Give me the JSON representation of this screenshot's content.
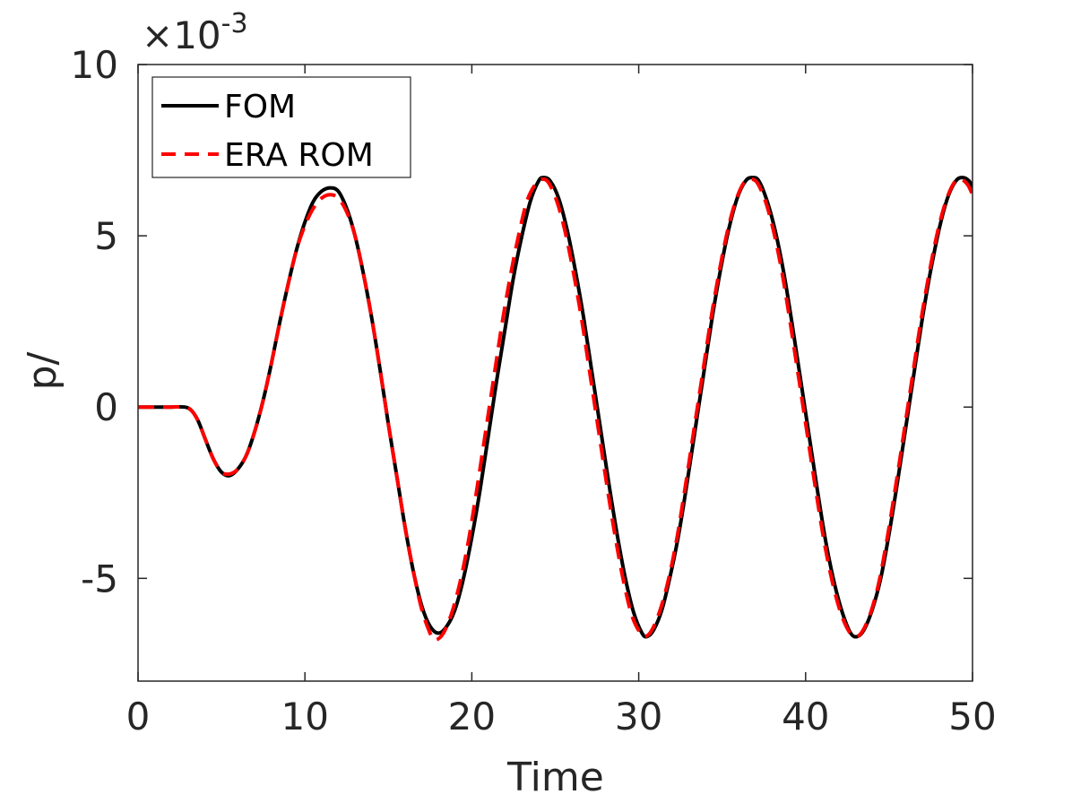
{
  "chart_data": {
    "type": "line",
    "title": "",
    "xlabel": "Time",
    "ylabel": "p/",
    "y_exponent_label": "×10",
    "y_exponent_power": "-3",
    "xlim": [
      0,
      50
    ],
    "ylim": [
      -8.0,
      10.0
    ],
    "x_ticks": [
      0,
      10,
      20,
      30,
      40,
      50
    ],
    "x_tick_labels": [
      "0",
      "10",
      "20",
      "30",
      "40",
      "50"
    ],
    "y_ticks": [
      -5,
      0,
      5,
      10
    ],
    "y_tick_labels": [
      "-5",
      "0",
      "5",
      "10"
    ],
    "grid": false,
    "legend_position": "top-left",
    "series": [
      {
        "name": "FOM",
        "color": "#000000",
        "style": "solid",
        "points": [
          [
            0,
            0
          ],
          [
            1,
            0
          ],
          [
            2,
            0
          ],
          [
            2.8,
            0
          ],
          [
            3.2,
            -0.1
          ],
          [
            3.6,
            -0.4
          ],
          [
            4,
            -0.9
          ],
          [
            4.5,
            -1.5
          ],
          [
            5,
            -1.9
          ],
          [
            5.5,
            -2.0
          ],
          [
            6,
            -1.8
          ],
          [
            6.5,
            -1.4
          ],
          [
            7,
            -0.7
          ],
          [
            7.5,
            0.2
          ],
          [
            8,
            1.3
          ],
          [
            8.5,
            2.5
          ],
          [
            9,
            3.6
          ],
          [
            9.5,
            4.6
          ],
          [
            10,
            5.4
          ],
          [
            10.5,
            6.0
          ],
          [
            11,
            6.3
          ],
          [
            11.5,
            6.4
          ],
          [
            12,
            6.3
          ],
          [
            12.5,
            5.8
          ],
          [
            13,
            5.0
          ],
          [
            13.5,
            3.9
          ],
          [
            14,
            2.6
          ],
          [
            14.5,
            1.1
          ],
          [
            15,
            -0.5
          ],
          [
            15.5,
            -2.0
          ],
          [
            16,
            -3.5
          ],
          [
            16.5,
            -4.8
          ],
          [
            17,
            -5.8
          ],
          [
            17.5,
            -6.4
          ],
          [
            18,
            -6.6
          ],
          [
            18.5,
            -6.4
          ],
          [
            19,
            -5.9
          ],
          [
            19.5,
            -5.0
          ],
          [
            20,
            -3.8
          ],
          [
            20.5,
            -2.4
          ],
          [
            21,
            -0.8
          ],
          [
            21.5,
            0.8
          ],
          [
            22,
            2.3
          ],
          [
            22.5,
            3.8
          ],
          [
            23,
            5.0
          ],
          [
            23.5,
            6.0
          ],
          [
            24,
            6.6
          ],
          [
            24.3,
            6.7
          ],
          [
            24.7,
            6.6
          ],
          [
            25.2,
            6.1
          ],
          [
            25.7,
            5.2
          ],
          [
            26.2,
            4.0
          ],
          [
            26.7,
            2.6
          ],
          [
            27.2,
            1.0
          ],
          [
            27.7,
            -0.6
          ],
          [
            28.2,
            -2.2
          ],
          [
            28.7,
            -3.7
          ],
          [
            29.2,
            -5.0
          ],
          [
            29.7,
            -6.0
          ],
          [
            30.2,
            -6.6
          ],
          [
            30.5,
            -6.7
          ],
          [
            30.9,
            -6.5
          ],
          [
            31.4,
            -5.9
          ],
          [
            31.9,
            -4.9
          ],
          [
            32.4,
            -3.7
          ],
          [
            32.9,
            -2.2
          ],
          [
            33.4,
            -0.6
          ],
          [
            33.9,
            1.0
          ],
          [
            34.4,
            2.6
          ],
          [
            34.9,
            4.0
          ],
          [
            35.4,
            5.2
          ],
          [
            35.9,
            6.1
          ],
          [
            36.4,
            6.6
          ],
          [
            36.8,
            6.7
          ],
          [
            37.2,
            6.6
          ],
          [
            37.7,
            6.0
          ],
          [
            38.2,
            5.1
          ],
          [
            38.7,
            3.9
          ],
          [
            39.2,
            2.4
          ],
          [
            39.7,
            0.8
          ],
          [
            40.2,
            -0.8
          ],
          [
            40.7,
            -2.4
          ],
          [
            41.2,
            -3.9
          ],
          [
            41.7,
            -5.1
          ],
          [
            42.2,
            -6.0
          ],
          [
            42.7,
            -6.6
          ],
          [
            43.1,
            -6.7
          ],
          [
            43.5,
            -6.5
          ],
          [
            44,
            -5.9
          ],
          [
            44.5,
            -5.0
          ],
          [
            45,
            -3.7
          ],
          [
            45.5,
            -2.2
          ],
          [
            46,
            -0.6
          ],
          [
            46.5,
            1.0
          ],
          [
            47,
            2.6
          ],
          [
            47.5,
            4.0
          ],
          [
            48,
            5.2
          ],
          [
            48.5,
            6.1
          ],
          [
            49,
            6.6
          ],
          [
            49.4,
            6.7
          ],
          [
            49.8,
            6.6
          ],
          [
            50,
            6.4
          ]
        ]
      },
      {
        "name": "ERA ROM",
        "color": "#ff0000",
        "style": "dashed",
        "points": [
          [
            0,
            0
          ],
          [
            1,
            0
          ],
          [
            2,
            0
          ],
          [
            2.8,
            0
          ],
          [
            3.2,
            -0.1
          ],
          [
            3.6,
            -0.4
          ],
          [
            4,
            -0.9
          ],
          [
            4.5,
            -1.5
          ],
          [
            5,
            -1.9
          ],
          [
            5.5,
            -1.95
          ],
          [
            6,
            -1.8
          ],
          [
            6.5,
            -1.4
          ],
          [
            7,
            -0.7
          ],
          [
            7.5,
            0.2
          ],
          [
            8,
            1.3
          ],
          [
            8.5,
            2.5
          ],
          [
            9,
            3.6
          ],
          [
            9.5,
            4.6
          ],
          [
            10,
            5.3
          ],
          [
            10.5,
            5.8
          ],
          [
            11,
            6.1
          ],
          [
            11.5,
            6.2
          ],
          [
            12,
            6.1
          ],
          [
            12.5,
            5.7
          ],
          [
            13,
            5.0
          ],
          [
            13.5,
            3.9
          ],
          [
            14,
            2.6
          ],
          [
            14.5,
            1.1
          ],
          [
            15,
            -0.5
          ],
          [
            15.5,
            -2.0
          ],
          [
            16,
            -3.5
          ],
          [
            16.5,
            -4.8
          ],
          [
            17,
            -5.9
          ],
          [
            17.5,
            -6.6
          ],
          [
            17.8,
            -6.8
          ],
          [
            18.3,
            -6.6
          ],
          [
            18.8,
            -6.0
          ],
          [
            19.3,
            -5.1
          ],
          [
            19.8,
            -3.9
          ],
          [
            20.3,
            -2.4
          ],
          [
            20.8,
            -0.8
          ],
          [
            21.3,
            0.8
          ],
          [
            21.8,
            2.4
          ],
          [
            22.3,
            3.8
          ],
          [
            22.8,
            5.0
          ],
          [
            23.3,
            6.0
          ],
          [
            23.8,
            6.5
          ],
          [
            24.2,
            6.65
          ],
          [
            24.6,
            6.55
          ],
          [
            25.1,
            6.0
          ],
          [
            25.6,
            5.1
          ],
          [
            26.1,
            3.9
          ],
          [
            26.6,
            2.5
          ],
          [
            27.1,
            0.9
          ],
          [
            27.6,
            -0.7
          ],
          [
            28.1,
            -2.3
          ],
          [
            28.6,
            -3.8
          ],
          [
            29.1,
            -5.1
          ],
          [
            29.6,
            -6.1
          ],
          [
            30.1,
            -6.6
          ],
          [
            30.4,
            -6.7
          ],
          [
            30.8,
            -6.5
          ],
          [
            31.3,
            -5.9
          ],
          [
            31.8,
            -5.0
          ],
          [
            32.3,
            -3.8
          ],
          [
            32.8,
            -2.3
          ],
          [
            33.3,
            -0.7
          ],
          [
            33.8,
            0.9
          ],
          [
            34.3,
            2.5
          ],
          [
            34.8,
            3.9
          ],
          [
            35.3,
            5.1
          ],
          [
            35.8,
            6.0
          ],
          [
            36.3,
            6.55
          ],
          [
            36.7,
            6.65
          ],
          [
            37.1,
            6.55
          ],
          [
            37.6,
            6.0
          ],
          [
            38.1,
            5.1
          ],
          [
            38.6,
            3.9
          ],
          [
            39.1,
            2.4
          ],
          [
            39.6,
            0.8
          ],
          [
            40.1,
            -0.8
          ],
          [
            40.6,
            -2.4
          ],
          [
            41.1,
            -3.9
          ],
          [
            41.6,
            -5.1
          ],
          [
            42.1,
            -6.0
          ],
          [
            42.6,
            -6.55
          ],
          [
            43,
            -6.7
          ],
          [
            43.4,
            -6.55
          ],
          [
            43.9,
            -6.0
          ],
          [
            44.4,
            -5.1
          ],
          [
            44.9,
            -3.8
          ],
          [
            45.4,
            -2.3
          ],
          [
            45.9,
            -0.7
          ],
          [
            46.4,
            0.9
          ],
          [
            46.9,
            2.5
          ],
          [
            47.4,
            3.9
          ],
          [
            47.9,
            5.1
          ],
          [
            48.4,
            6.0
          ],
          [
            48.9,
            6.55
          ],
          [
            49.3,
            6.65
          ],
          [
            49.7,
            6.5
          ],
          [
            50,
            6.2
          ]
        ]
      }
    ]
  }
}
